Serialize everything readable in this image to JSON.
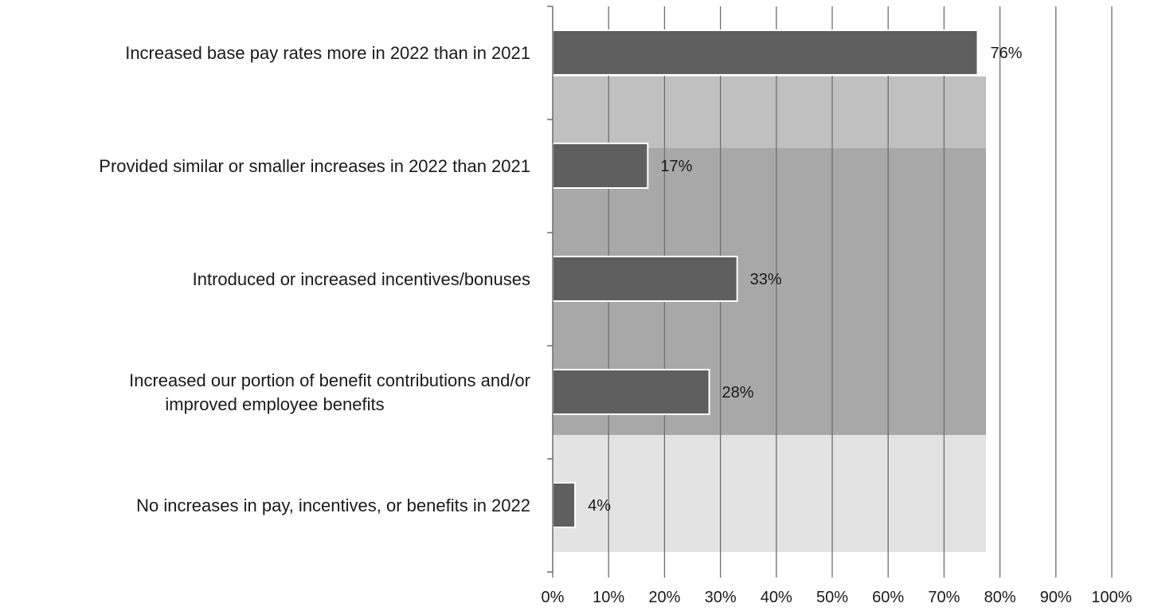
{
  "chart_data": {
    "type": "bar",
    "orientation": "horizontal",
    "title": "",
    "xlabel": "",
    "ylabel": "",
    "categories": [
      [
        "Increased base pay rates more in 2022 than in 2021"
      ],
      [
        "Provided similar or smaller increases in 2022 than 2021"
      ],
      [
        "Introduced or increased incentives/bonuses"
      ],
      [
        "Increased our portion of benefit contributions and/or",
        "improved employee benefits"
      ],
      [
        "No increases in pay, incentives, or benefits in 2022"
      ]
    ],
    "values": [
      76,
      17,
      33,
      28,
      4
    ],
    "data_labels": [
      "76%",
      "17%",
      "33%",
      "28%",
      "4%"
    ],
    "xlim": [
      0,
      100
    ],
    "xticks": [
      0,
      10,
      20,
      30,
      40,
      50,
      60,
      70,
      80,
      90,
      100
    ],
    "xtick_labels": [
      "0%",
      "10%",
      "20%",
      "30%",
      "40%",
      "50%",
      "60%",
      "70%",
      "80%",
      "90%",
      "100%"
    ],
    "grid": "vertical",
    "legend": "none",
    "colors": {
      "bar_fill": "#5f5f5f",
      "bar_stroke": "#ffffff",
      "gridline": "#6e6e6e",
      "axis": "#6e6e6e",
      "plot_band": [
        "#c0c0c0",
        "#a8a8a8",
        "#e3e3e3"
      ]
    }
  }
}
